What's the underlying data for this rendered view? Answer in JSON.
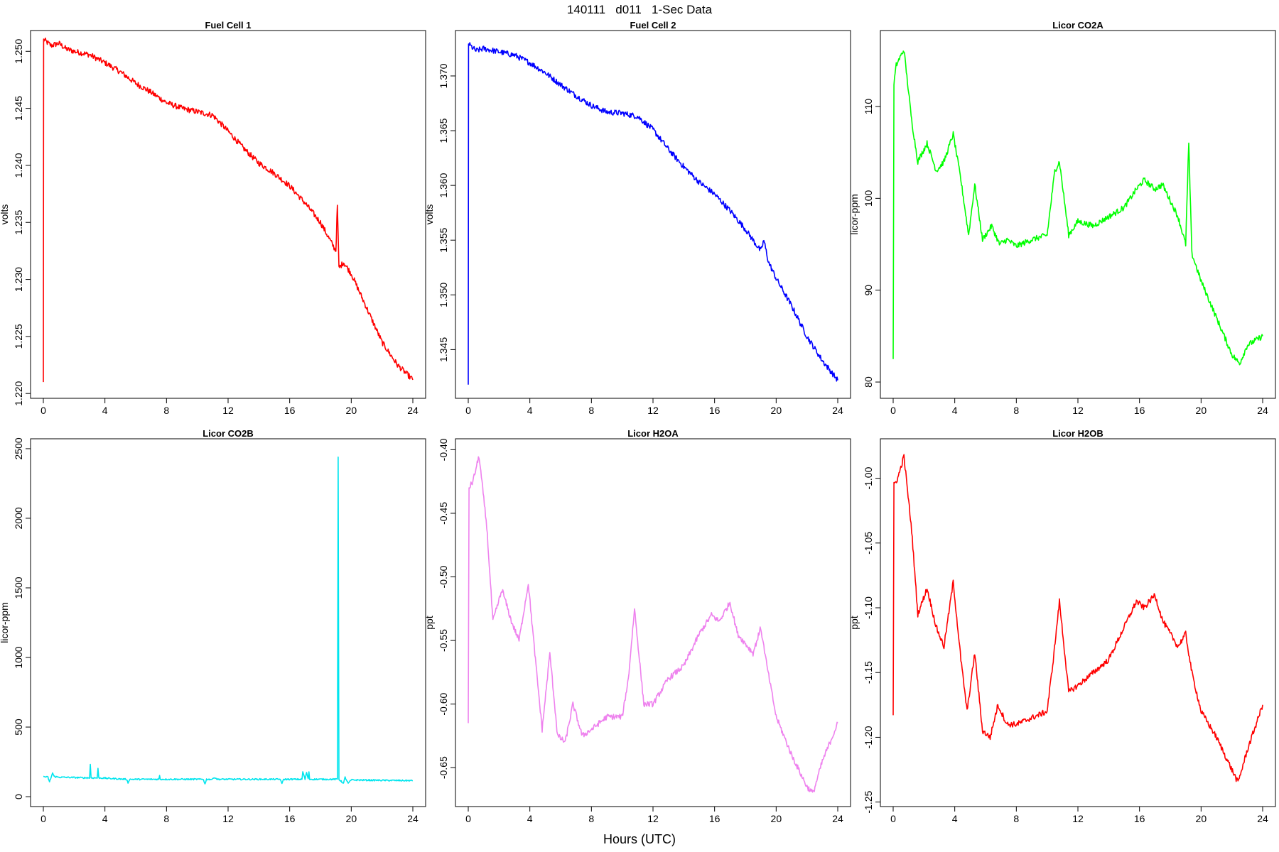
{
  "figure": {
    "title": "140111   d011   1-Sec Data",
    "xlabel": "Hours (UTC)"
  },
  "chart_data": [
    {
      "type": "line",
      "title": "Fuel Cell 1",
      "ylabel": "volts",
      "color": "#ff0000",
      "xlim": [
        0,
        24
      ],
      "xticks": [
        0,
        4,
        8,
        12,
        16,
        20,
        24
      ],
      "ylim": [
        1.2202,
        1.2512
      ],
      "yticks": [
        "1.220",
        "1.225",
        "1.230",
        "1.235",
        "1.240",
        "1.245",
        "1.250"
      ],
      "series": [
        {
          "x": [
            0,
            0.02,
            0.05,
            0.5,
            1,
            1.5,
            2,
            3,
            4,
            5,
            6,
            7,
            8,
            9,
            10,
            11,
            12,
            13,
            14,
            15,
            16,
            17,
            18,
            19,
            19.1,
            19.2,
            19.5,
            20,
            21,
            22,
            23,
            24
          ],
          "y": [
            1.221,
            1.251,
            1.251,
            1.2505,
            1.2507,
            1.2502,
            1.25,
            1.2497,
            1.249,
            1.2482,
            1.2472,
            1.2464,
            1.2455,
            1.245,
            1.2447,
            1.2444,
            1.243,
            1.2415,
            1.2402,
            1.2393,
            1.2382,
            1.2367,
            1.235,
            1.2325,
            1.2365,
            1.231,
            1.2315,
            1.2305,
            1.2275,
            1.2245,
            1.2225,
            1.2212
          ]
        }
      ]
    },
    {
      "type": "line",
      "title": "Fuel Cell 2",
      "ylabel": "volts",
      "color": "#0000ff",
      "xlim": [
        0,
        24
      ],
      "xticks": [
        0,
        4,
        8,
        12,
        16,
        20,
        24
      ],
      "ylim": [
        1.3412,
        1.3735
      ],
      "yticks": [
        "1.345",
        "1.350",
        "1.355",
        "1.360",
        "1.365",
        "1.370"
      ],
      "series": [
        {
          "x": [
            0,
            0.02,
            0.1,
            0.5,
            1,
            2,
            3,
            4,
            5,
            6,
            7,
            8,
            9,
            10,
            11,
            12,
            13,
            14,
            15,
            16,
            17,
            18,
            19,
            19.2,
            19.5,
            20,
            21,
            22,
            23,
            24
          ],
          "y": [
            1.3418,
            1.373,
            1.3728,
            1.3723,
            1.3725,
            1.3722,
            1.3719,
            1.3712,
            1.3703,
            1.3692,
            1.3682,
            1.3673,
            1.3667,
            1.3666,
            1.3663,
            1.3651,
            1.3633,
            1.3617,
            1.3603,
            1.3592,
            1.3577,
            1.356,
            1.354,
            1.355,
            1.353,
            1.3515,
            1.349,
            1.3462,
            1.344,
            1.3422
          ]
        }
      ]
    },
    {
      "type": "line",
      "title": "Licor CO2A",
      "ylabel": "licor-ppm",
      "color": "#00ff00",
      "xlim": [
        0,
        24
      ],
      "xticks": [
        0,
        4,
        8,
        12,
        16,
        20,
        24
      ],
      "ylim": [
        79,
        117.5
      ],
      "yticks": [
        "80",
        "90",
        "100",
        "110"
      ],
      "series": [
        {
          "x": [
            0,
            0.05,
            0.2,
            0.7,
            1.2,
            1.6,
            2.2,
            2.8,
            3.3,
            3.9,
            4.4,
            4.9,
            5.3,
            5.8,
            6.4,
            6.9,
            7.4,
            8,
            9,
            10,
            10.5,
            10.8,
            11.4,
            12,
            13,
            14,
            15,
            15.8,
            16.3,
            17,
            17.5,
            18.5,
            19,
            19.2,
            19.4,
            20,
            21,
            22,
            22.5,
            23,
            24
          ],
          "y": [
            82.5,
            112.5,
            114.5,
            116.2,
            108.5,
            104,
            106,
            103,
            104,
            107,
            102,
            96,
            101.5,
            95.5,
            97,
            95,
            95.5,
            94.8,
            95.5,
            96,
            103,
            104,
            96,
            97.5,
            97,
            98,
            99,
            101,
            102,
            101,
            101.5,
            98,
            95,
            106,
            94,
            91,
            87,
            83,
            82,
            84,
            85
          ]
        }
      ]
    },
    {
      "type": "line",
      "title": "Licor CO2B",
      "ylabel": "licor-ppm",
      "color": "#00e5ee",
      "xlim": [
        0,
        24
      ],
      "xticks": [
        0,
        4,
        8,
        12,
        16,
        20,
        24
      ],
      "ylim": [
        -20,
        2520
      ],
      "yticks": [
        "0",
        "500",
        "1000",
        "1500",
        "2000",
        "2500"
      ],
      "series": [
        {
          "x": [
            0,
            0.3,
            0.4,
            0.6,
            0.7,
            1,
            3,
            3.05,
            3.1,
            3.5,
            3.55,
            3.6,
            5.4,
            5.5,
            5.6,
            6,
            6.05,
            7.5,
            7.55,
            7.6,
            10.4,
            10.5,
            10.6,
            11,
            11.1,
            11.3,
            15.4,
            15.5,
            15.6,
            16,
            16.8,
            16.85,
            17,
            17.1,
            17.2,
            17.25,
            17.3,
            19.1,
            19.15,
            19.2,
            19.5,
            19.6,
            19.8,
            20,
            24
          ],
          "y": [
            145,
            140,
            105,
            170,
            145,
            140,
            135,
            230,
            135,
            135,
            200,
            135,
            125,
            100,
            125,
            125,
            125,
            125,
            150,
            125,
            125,
            90,
            125,
            125,
            140,
            125,
            125,
            90,
            125,
            125,
            125,
            180,
            125,
            175,
            125,
            180,
            125,
            125,
            2440,
            125,
            95,
            140,
            95,
            120,
            115
          ]
        }
      ]
    },
    {
      "type": "line",
      "title": "Licor H2OA",
      "ylabel": "ppt",
      "color": "#ee82ee",
      "xlim": [
        0,
        24
      ],
      "xticks": [
        0,
        4,
        8,
        12,
        16,
        20,
        24
      ],
      "ylim": [
        -0.675,
        -0.397
      ],
      "yticks": [
        "-0.65",
        "-0.60",
        "-0.55",
        "-0.50",
        "-0.45",
        "-0.40"
      ],
      "series": [
        {
          "x": [
            0,
            0.05,
            0.3,
            0.7,
            1.2,
            1.6,
            2.2,
            2.8,
            3.3,
            3.9,
            4.4,
            4.8,
            5.3,
            5.8,
            6.3,
            6.8,
            7.4,
            8,
            9,
            10,
            10.4,
            10.8,
            11.4,
            12,
            13,
            14,
            15,
            15.8,
            16.3,
            17,
            17.5,
            18.5,
            19,
            19.4,
            20,
            21,
            22,
            22.4,
            23,
            24
          ],
          "y": [
            -0.615,
            -0.43,
            -0.425,
            -0.405,
            -0.46,
            -0.535,
            -0.51,
            -0.535,
            -0.55,
            -0.505,
            -0.57,
            -0.62,
            -0.56,
            -0.625,
            -0.63,
            -0.6,
            -0.625,
            -0.62,
            -0.61,
            -0.61,
            -0.58,
            -0.525,
            -0.6,
            -0.6,
            -0.58,
            -0.57,
            -0.545,
            -0.53,
            -0.535,
            -0.52,
            -0.545,
            -0.56,
            -0.54,
            -0.57,
            -0.61,
            -0.64,
            -0.665,
            -0.67,
            -0.645,
            -0.615
          ]
        }
      ]
    },
    {
      "type": "line",
      "title": "Licor H2OB",
      "ylabel": "ppt",
      "color": "#ff0000",
      "xlim": [
        0,
        24
      ],
      "xticks": [
        0,
        4,
        8,
        12,
        16,
        20,
        24
      ],
      "ylim": [
        -1.248,
        -0.975
      ],
      "yticks": [
        "-1.25",
        "-1.20",
        "-1.15",
        "-1.10",
        "-1.05",
        "-1.00"
      ],
      "series": [
        {
          "x": [
            0,
            0.05,
            0.3,
            0.7,
            1.2,
            1.6,
            2.2,
            2.8,
            3.3,
            3.9,
            4.4,
            4.8,
            5.3,
            5.8,
            6.3,
            6.8,
            7.4,
            8,
            9,
            10,
            10.4,
            10.8,
            11.4,
            12,
            13,
            14,
            15,
            15.8,
            16.3,
            17,
            17.5,
            18.5,
            19,
            19.4,
            20,
            21,
            22,
            22.4,
            23,
            24
          ],
          "y": [
            -1.183,
            -1.005,
            -1.0,
            -0.983,
            -1.04,
            -1.105,
            -1.085,
            -1.115,
            -1.13,
            -1.08,
            -1.14,
            -1.18,
            -1.135,
            -1.195,
            -1.2,
            -1.175,
            -1.19,
            -1.19,
            -1.185,
            -1.18,
            -1.14,
            -1.095,
            -1.165,
            -1.16,
            -1.15,
            -1.14,
            -1.115,
            -1.095,
            -1.1,
            -1.09,
            -1.11,
            -1.13,
            -1.12,
            -1.15,
            -1.18,
            -1.2,
            -1.225,
            -1.235,
            -1.21,
            -1.175
          ]
        }
      ]
    }
  ]
}
